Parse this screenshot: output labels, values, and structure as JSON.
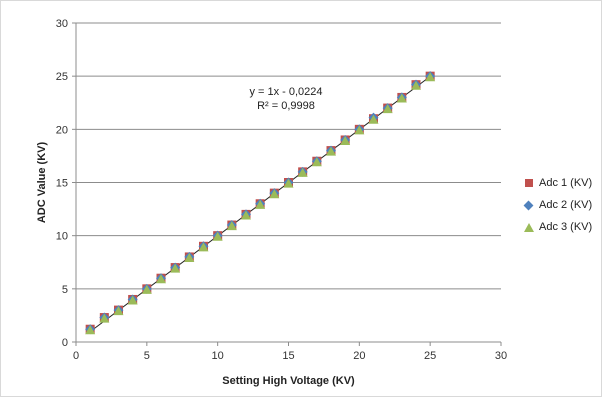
{
  "chart_data": {
    "type": "scatter",
    "title": "",
    "xlabel": "Setting High Voltage (KV)",
    "ylabel": "ADC Value (KV)",
    "xlim": [
      0,
      30
    ],
    "ylim": [
      0,
      30
    ],
    "xticks": [
      0,
      5,
      10,
      15,
      20,
      25,
      30
    ],
    "yticks": [
      0,
      5,
      10,
      15,
      20,
      25,
      30
    ],
    "grid": "horizontal",
    "legend_position": "right",
    "series": [
      {
        "name": "Adc 1 (KV)",
        "marker": "square",
        "color": "#c0504d",
        "x": [
          1,
          2,
          3,
          4,
          5,
          6,
          7,
          8,
          9,
          10,
          11,
          12,
          13,
          14,
          15,
          16,
          17,
          18,
          19,
          20,
          21,
          22,
          23,
          24,
          25
        ],
        "y": [
          1.2,
          2.3,
          3.0,
          4.0,
          5.0,
          6.0,
          7.0,
          8.0,
          9.0,
          10.0,
          11.0,
          12.0,
          13.0,
          14.0,
          15.0,
          16.0,
          17.0,
          18.0,
          19.0,
          20.0,
          21.0,
          22.0,
          23.0,
          24.2,
          25.0
        ]
      },
      {
        "name": "Adc 2 (KV)",
        "marker": "diamond",
        "color": "#4f81bd",
        "x": [
          1,
          2,
          3,
          4,
          5,
          6,
          7,
          8,
          9,
          10,
          11,
          12,
          13,
          14,
          15,
          16,
          17,
          18,
          19,
          20,
          21,
          22,
          23,
          24,
          25
        ],
        "y": [
          1.2,
          2.3,
          3.0,
          4.0,
          5.0,
          6.0,
          7.0,
          8.0,
          9.0,
          10.0,
          11.0,
          12.0,
          13.0,
          14.0,
          15.0,
          16.0,
          17.0,
          18.0,
          19.0,
          20.0,
          21.1,
          22.0,
          23.0,
          24.2,
          25.0
        ]
      },
      {
        "name": "Adc 3 (KV)",
        "marker": "triangle",
        "color": "#9bbb59",
        "x": [
          1,
          2,
          3,
          4,
          5,
          6,
          7,
          8,
          9,
          10,
          11,
          12,
          13,
          14,
          15,
          16,
          17,
          18,
          19,
          20,
          21,
          22,
          23,
          24,
          25
        ],
        "y": [
          1.1,
          2.2,
          2.9,
          3.9,
          4.9,
          5.9,
          6.9,
          7.9,
          8.9,
          9.9,
          10.9,
          11.9,
          12.9,
          13.9,
          14.9,
          15.9,
          16.9,
          17.9,
          18.9,
          19.9,
          20.9,
          21.9,
          22.9,
          24.1,
          24.9
        ]
      }
    ],
    "trendline": {
      "slope": 1,
      "intercept": -0.0224,
      "x_range": [
        1,
        25
      ],
      "color": "#222222"
    },
    "annotations": [
      "y = 1x - 0,0224",
      "R² = 0,9998"
    ]
  }
}
